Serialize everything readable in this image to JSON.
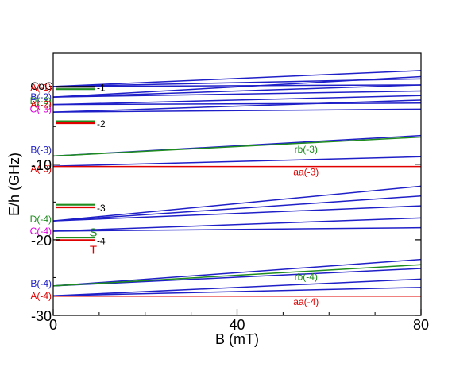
{
  "colors": {
    "blue": "#1f1fc8",
    "red": "#e00000",
    "green": "#1e8c1e",
    "magenta": "#e000e0",
    "black": "#000000"
  },
  "chart_data": {
    "type": "line",
    "xlabel": "B (mT)",
    "ylabel": "E/h (GHz)",
    "xlim": [
      0,
      80
    ],
    "ylim": [
      -30,
      4.7
    ],
    "x_ticks": [
      0,
      40,
      80
    ],
    "x_tick_labels": [
      "0",
      "40",
      "80"
    ],
    "y_ticks": [
      -10,
      -20,
      -30
    ],
    "y_tick_labels": [
      "-10",
      "-20",
      "-30"
    ],
    "grid": false,
    "level_lines": [
      {
        "y": 0.25,
        "color": "black",
        "label": "-1"
      },
      {
        "y": -0.05,
        "color": "green",
        "label": ""
      },
      {
        "y": -4.3,
        "color": "green",
        "label": ""
      },
      {
        "y": -4.55,
        "color": "red",
        "label": "-2"
      },
      {
        "y": -15.35,
        "color": "green",
        "label": ""
      },
      {
        "y": -15.7,
        "color": "red",
        "label": "-3"
      },
      {
        "y": -19.7,
        "color": "green",
        "label": ""
      },
      {
        "y": -20.05,
        "color": "red",
        "label": "-4"
      }
    ],
    "level_annotations": [
      {
        "text": "CoG",
        "x": 0,
        "y": 0.4,
        "color": "black"
      },
      {
        "text": "S",
        "x": 7,
        "y": -19.0,
        "color": "green"
      },
      {
        "text": "T",
        "x": 7,
        "y": -21.3,
        "color": "red"
      }
    ],
    "blue_lines": [
      {
        "x": [
          0,
          80
        ],
        "y": [
          0.3,
          0.5
        ]
      },
      {
        "x": [
          0,
          80
        ],
        "y": [
          0.3,
          1.3
        ]
      },
      {
        "x": [
          0,
          80
        ],
        "y": [
          0.3,
          2.4
        ]
      },
      {
        "x": [
          0,
          80
        ],
        "y": [
          -1.1,
          -0.3
        ]
      },
      {
        "x": [
          0,
          80
        ],
        "y": [
          -1.1,
          0.5
        ]
      },
      {
        "x": [
          0,
          80
        ],
        "y": [
          -1.1,
          1.6
        ]
      },
      {
        "x": [
          0,
          80
        ],
        "y": [
          -2.1,
          -1.9
        ]
      },
      {
        "x": [
          0,
          80
        ],
        "y": [
          -2.1,
          -0.9
        ]
      },
      {
        "x": [
          0,
          80
        ],
        "y": [
          -3.1,
          -2.7
        ]
      },
      {
        "x": [
          0,
          80
        ],
        "y": [
          -3.1,
          -1.5
        ]
      },
      {
        "x": [
          0,
          80
        ],
        "y": [
          -8.9,
          -6.2
        ]
      },
      {
        "x": [
          0,
          80
        ],
        "y": [
          -10.25,
          -9.0
        ]
      },
      {
        "x": [
          0,
          80
        ],
        "y": [
          -17.5,
          -15.5
        ]
      },
      {
        "x": [
          0,
          80
        ],
        "y": [
          -17.5,
          -14.2
        ]
      },
      {
        "x": [
          0,
          80
        ],
        "y": [
          -17.5,
          -12.9
        ]
      },
      {
        "x": [
          0,
          80
        ],
        "y": [
          -18.85,
          -18.4
        ]
      },
      {
        "x": [
          0,
          80
        ],
        "y": [
          -18.85,
          -17.1
        ]
      },
      {
        "x": [
          0,
          80
        ],
        "y": [
          -26.1,
          -23.8
        ]
      },
      {
        "x": [
          0,
          80
        ],
        "y": [
          -26.1,
          -22.6
        ]
      },
      {
        "x": [
          0,
          80
        ],
        "y": [
          -27.4,
          -26.3
        ]
      },
      {
        "x": [
          0,
          80
        ],
        "y": [
          -27.4,
          -25.2
        ]
      }
    ],
    "series": [
      {
        "name": "rb(-3)",
        "color": "green",
        "x": [
          0,
          80
        ],
        "y": [
          -8.9,
          -6.4
        ],
        "label_at": [
          55,
          -8.0
        ]
      },
      {
        "name": "aa(-3)",
        "color": "red",
        "x": [
          0,
          80
        ],
        "y": [
          -10.3,
          -10.3
        ],
        "label_at": [
          55,
          -11.0
        ]
      },
      {
        "name": "rb(-4)",
        "color": "green",
        "x": [
          0,
          80
        ],
        "y": [
          -26.1,
          -23.3
        ],
        "label_at": [
          55,
          -24.9
        ]
      },
      {
        "name": "aa(-4)",
        "color": "red",
        "x": [
          0,
          80
        ],
        "y": [
          -27.45,
          -27.45
        ],
        "label_at": [
          55,
          -28.2
        ]
      }
    ],
    "state_labels": [
      {
        "text": "A(-1)",
        "color": "red",
        "y": 0.2
      },
      {
        "text": "B(-2)",
        "color": "blue",
        "y": -1.1
      },
      {
        "text": "D(-3)",
        "color": "green",
        "y": -1.6
      },
      {
        "text": "A(-2)",
        "color": "red",
        "y": -2.1
      },
      {
        "text": "C(-3)",
        "color": "magenta",
        "y": -2.7
      },
      {
        "text": "B(-3)",
        "color": "blue",
        "y": -8.1
      },
      {
        "text": "A(-3)",
        "color": "red",
        "y": -10.6
      },
      {
        "text": "D(-4)",
        "color": "green",
        "y": -17.3
      },
      {
        "text": "C(-4)",
        "color": "magenta",
        "y": -18.85
      },
      {
        "text": "B(-4)",
        "color": "blue",
        "y": -25.8
      },
      {
        "text": "A(-4)",
        "color": "red",
        "y": -27.45
      }
    ]
  }
}
